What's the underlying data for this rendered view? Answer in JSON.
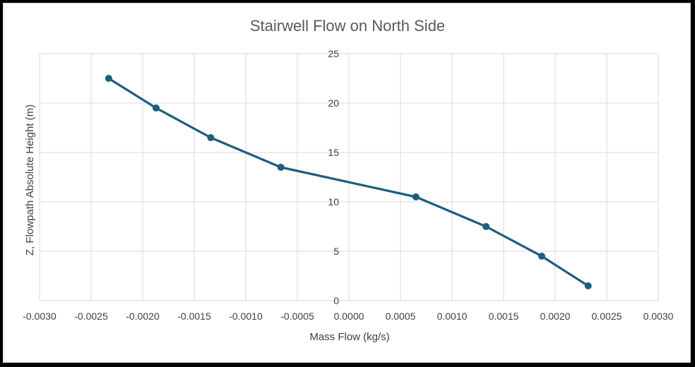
{
  "chart_data": {
    "type": "scatter",
    "title": "Stairwell Flow on North Side",
    "xlabel": "Mass Flow (kg/s)",
    "ylabel": "Z, Flowpath Absolute Height (m)",
    "xlim": [
      -0.003,
      0.003
    ],
    "ylim": [
      0,
      25
    ],
    "x_ticks": [
      -0.003,
      -0.0025,
      -0.002,
      -0.0015,
      -0.001,
      -0.0005,
      0.0,
      0.0005,
      0.001,
      0.0015,
      0.002,
      0.0025,
      0.003
    ],
    "x_tick_labels": [
      "-0.0030",
      "-0.0025",
      "-0.0020",
      "-0.0015",
      "-0.0010",
      "-0.0005",
      "0.0000",
      "0.0005",
      "0.0010",
      "0.0015",
      "0.0020",
      "0.0025",
      "0.0030"
    ],
    "y_ticks": [
      0,
      5,
      10,
      15,
      20,
      25
    ],
    "y_tick_labels": [
      "0",
      "5",
      "10",
      "15",
      "20",
      "25"
    ],
    "grid": true,
    "legend": "none",
    "series": [
      {
        "color": "#1b5e7e",
        "markers": true,
        "lines": true,
        "points": [
          {
            "x": -0.00233,
            "y": 22.5
          },
          {
            "x": -0.00187,
            "y": 19.5
          },
          {
            "x": -0.00134,
            "y": 16.5
          },
          {
            "x": -0.00066,
            "y": 13.5
          },
          {
            "x": 0.00065,
            "y": 10.5
          },
          {
            "x": 0.00133,
            "y": 7.5
          },
          {
            "x": 0.00187,
            "y": 4.5
          },
          {
            "x": 0.00232,
            "y": 1.5
          }
        ]
      }
    ]
  }
}
